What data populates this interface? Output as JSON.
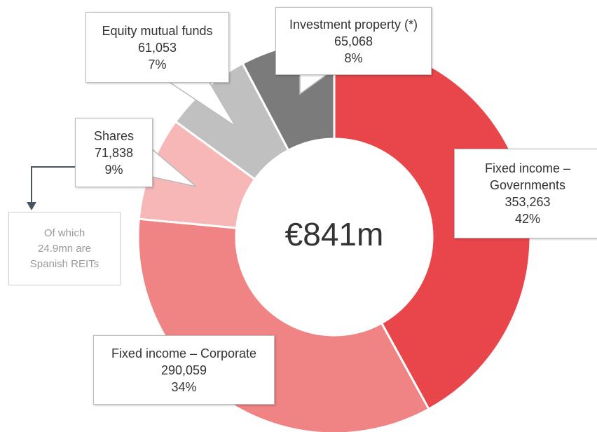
{
  "chart_data": {
    "type": "donut",
    "center_label": "€841m",
    "categories": [
      "Fixed income – Governments",
      "Fixed income – Corporate",
      "Shares",
      "Equity mutual funds",
      "Investment property (*)"
    ],
    "values": [
      353263,
      290059,
      71838,
      61053,
      65068
    ],
    "value_labels": [
      "353,263",
      "290,059",
      "71,838",
      "61,053",
      "65,068"
    ],
    "percent_labels": [
      "42%",
      "34%",
      "9%",
      "7%",
      "8%"
    ],
    "colors": [
      "#e8464a",
      "#f08383",
      "#f7b7b7",
      "#c0c0c0",
      "#7b7b7b"
    ],
    "annotation": {
      "lines": [
        "Of which",
        "24.9mn are",
        "Spanish REITs"
      ]
    }
  }
}
